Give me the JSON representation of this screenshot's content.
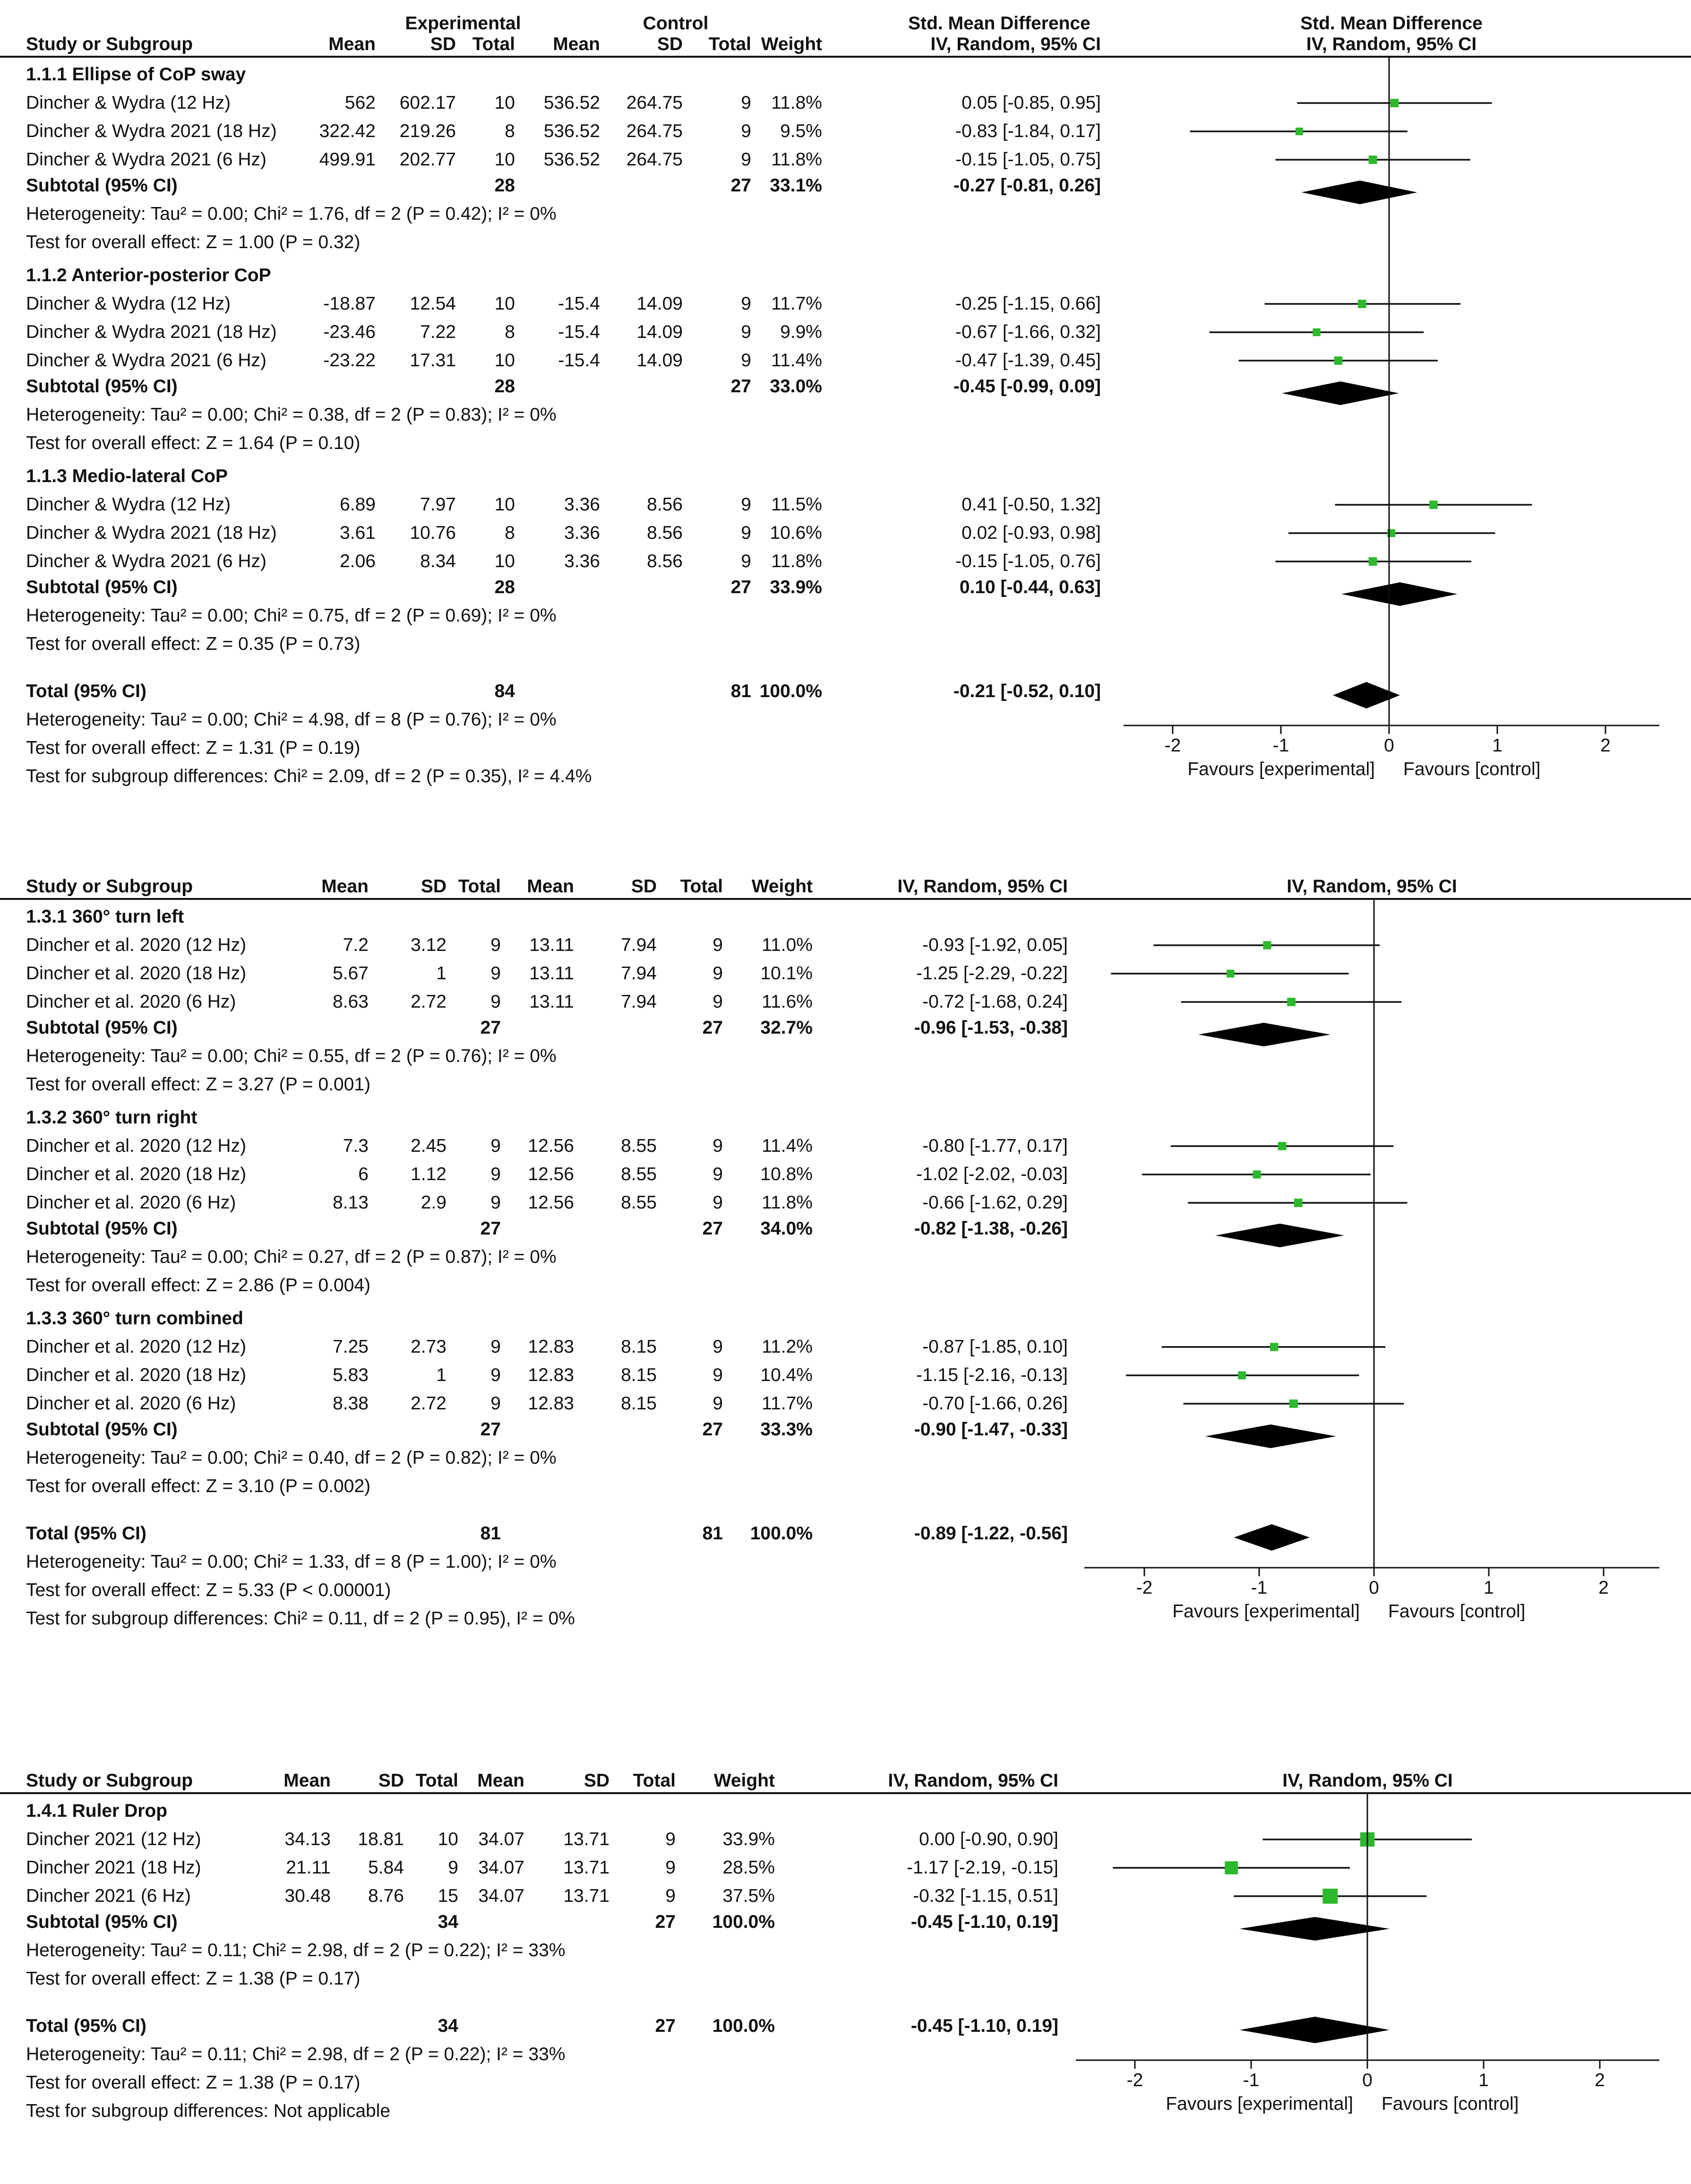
{
  "colors": {
    "marker": "#2db82d",
    "ink": "#111111",
    "diamond": "#000000"
  },
  "top_header": {
    "experimental": "Experimental",
    "control": "Control",
    "smd": "Std. Mean Difference",
    "smd_plot": "Std. Mean Difference"
  },
  "chart_data": [
    {
      "type": "forest",
      "columns": [
        "Study or Subgroup",
        "Mean",
        "SD",
        "Total",
        "Mean",
        "SD",
        "Total",
        "Weight",
        "IV, Random, 95% CI"
      ],
      "plot_header": "IV, Random, 95% CI",
      "xlim": [
        -2,
        2
      ],
      "ticks": [
        "-2",
        "-1",
        "0",
        "1",
        "2"
      ],
      "favours_left": "Favours [experimental]",
      "favours_right": "Favours [control]",
      "groups": [
        {
          "title": "1.1.1 Ellipse of CoP sway",
          "studies": [
            {
              "name": "Dincher & Wydra (12 Hz)",
              "e_mean": "562",
              "e_sd": "602.17",
              "e_total": "10",
              "c_mean": "536.52",
              "c_sd": "264.75",
              "c_total": "9",
              "weight": "11.8%",
              "ci": "0.05 [-0.85, 0.95]",
              "est": 0.05,
              "lo": -0.85,
              "hi": 0.95,
              "w": 11.8
            },
            {
              "name": "Dincher & Wydra 2021 (18 Hz)",
              "e_mean": "322.42",
              "e_sd": "219.26",
              "e_total": "8",
              "c_mean": "536.52",
              "c_sd": "264.75",
              "c_total": "9",
              "weight": "9.5%",
              "ci": "-0.83 [-1.84, 0.17]",
              "est": -0.83,
              "lo": -1.84,
              "hi": 0.17,
              "w": 9.5
            },
            {
              "name": "Dincher & Wydra 2021 (6 Hz)",
              "e_mean": "499.91",
              "e_sd": "202.77",
              "e_total": "10",
              "c_mean": "536.52",
              "c_sd": "264.75",
              "c_total": "9",
              "weight": "11.8%",
              "ci": "-0.15 [-1.05, 0.75]",
              "est": -0.15,
              "lo": -1.05,
              "hi": 0.75,
              "w": 11.8
            }
          ],
          "subtotal": {
            "label": "Subtotal (95% CI)",
            "e_total": "28",
            "c_total": "27",
            "weight": "33.1%",
            "ci": "-0.27 [-0.81, 0.26]",
            "est": -0.27,
            "lo": -0.81,
            "hi": 0.26
          },
          "heterogeneity": "Heterogeneity: Tau² = 0.00; Chi² = 1.76, df = 2 (P = 0.42); I² = 0%",
          "overall": "Test for overall effect: Z = 1.00 (P = 0.32)"
        },
        {
          "title": "1.1.2 Anterior-posterior CoP",
          "studies": [
            {
              "name": "Dincher & Wydra (12 Hz)",
              "e_mean": "-18.87",
              "e_sd": "12.54",
              "e_total": "10",
              "c_mean": "-15.4",
              "c_sd": "14.09",
              "c_total": "9",
              "weight": "11.7%",
              "ci": "-0.25 [-1.15, 0.66]",
              "est": -0.25,
              "lo": -1.15,
              "hi": 0.66,
              "w": 11.7
            },
            {
              "name": "Dincher & Wydra 2021 (18 Hz)",
              "e_mean": "-23.46",
              "e_sd": "7.22",
              "e_total": "8",
              "c_mean": "-15.4",
              "c_sd": "14.09",
              "c_total": "9",
              "weight": "9.9%",
              "ci": "-0.67 [-1.66, 0.32]",
              "est": -0.67,
              "lo": -1.66,
              "hi": 0.32,
              "w": 9.9
            },
            {
              "name": "Dincher & Wydra 2021 (6 Hz)",
              "e_mean": "-23.22",
              "e_sd": "17.31",
              "e_total": "10",
              "c_mean": "-15.4",
              "c_sd": "14.09",
              "c_total": "9",
              "weight": "11.4%",
              "ci": "-0.47 [-1.39, 0.45]",
              "est": -0.47,
              "lo": -1.39,
              "hi": 0.45,
              "w": 11.4
            }
          ],
          "subtotal": {
            "label": "Subtotal (95% CI)",
            "e_total": "28",
            "c_total": "27",
            "weight": "33.0%",
            "ci": "-0.45 [-0.99, 0.09]",
            "est": -0.45,
            "lo": -0.99,
            "hi": 0.09
          },
          "heterogeneity": "Heterogeneity: Tau² = 0.00; Chi² = 0.38, df = 2 (P = 0.83); I² = 0%",
          "overall": "Test for overall effect: Z = 1.64 (P = 0.10)"
        },
        {
          "title": "1.1.3 Medio-lateral CoP",
          "studies": [
            {
              "name": "Dincher & Wydra (12 Hz)",
              "e_mean": "6.89",
              "e_sd": "7.97",
              "e_total": "10",
              "c_mean": "3.36",
              "c_sd": "8.56",
              "c_total": "9",
              "weight": "11.5%",
              "ci": "0.41 [-0.50, 1.32]",
              "est": 0.41,
              "lo": -0.5,
              "hi": 1.32,
              "w": 11.5
            },
            {
              "name": "Dincher & Wydra 2021 (18 Hz)",
              "e_mean": "3.61",
              "e_sd": "10.76",
              "e_total": "8",
              "c_mean": "3.36",
              "c_sd": "8.56",
              "c_total": "9",
              "weight": "10.6%",
              "ci": "0.02 [-0.93, 0.98]",
              "est": 0.02,
              "lo": -0.93,
              "hi": 0.98,
              "w": 10.6
            },
            {
              "name": "Dincher & Wydra 2021 (6 Hz)",
              "e_mean": "2.06",
              "e_sd": "8.34",
              "e_total": "10",
              "c_mean": "3.36",
              "c_sd": "8.56",
              "c_total": "9",
              "weight": "11.8%",
              "ci": "-0.15 [-1.05, 0.76]",
              "est": -0.15,
              "lo": -1.05,
              "hi": 0.76,
              "w": 11.8
            }
          ],
          "subtotal": {
            "label": "Subtotal (95% CI)",
            "e_total": "28",
            "c_total": "27",
            "weight": "33.9%",
            "ci": "0.10 [-0.44, 0.63]",
            "est": 0.1,
            "lo": -0.44,
            "hi": 0.63
          },
          "heterogeneity": "Heterogeneity: Tau² = 0.00; Chi² = 0.75, df = 2 (P = 0.69); I² = 0%",
          "overall": "Test for overall effect: Z = 0.35 (P = 0.73)"
        }
      ],
      "total": {
        "label": "Total (95% CI)",
        "e_total": "84",
        "c_total": "81",
        "weight": "100.0%",
        "ci": "-0.21 [-0.52, 0.10]",
        "est": -0.21,
        "lo": -0.52,
        "hi": 0.1
      },
      "footer": [
        "Heterogeneity: Tau² = 0.00; Chi² = 4.98, df = 8 (P = 0.76); I² = 0%",
        "Test for overall effect: Z = 1.31 (P = 0.19)",
        "Test for subgroup differences: Chi² = 2.09, df = 2 (P = 0.35), I² = 4.4%"
      ]
    },
    {
      "type": "forest",
      "columns": [
        "Study or Subgroup",
        "Mean",
        "SD",
        "Total",
        "Mean",
        "SD",
        "Total",
        "Weight",
        "IV, Random, 95% CI"
      ],
      "plot_header": "IV, Random, 95% CI",
      "xlim": [
        -2,
        2
      ],
      "ticks": [
        "-2",
        "-1",
        "0",
        "1",
        "2"
      ],
      "favours_left": "Favours [experimental]",
      "favours_right": "Favours [control]",
      "groups": [
        {
          "title": "1.3.1 360° turn left",
          "studies": [
            {
              "name": "Dincher et al. 2020 (12 Hz)",
              "e_mean": "7.2",
              "e_sd": "3.12",
              "e_total": "9",
              "c_mean": "13.11",
              "c_sd": "7.94",
              "c_total": "9",
              "weight": "11.0%",
              "ci": "-0.93 [-1.92, 0.05]",
              "est": -0.93,
              "lo": -1.92,
              "hi": 0.05,
              "w": 11.0
            },
            {
              "name": "Dincher et al. 2020 (18 Hz)",
              "e_mean": "5.67",
              "e_sd": "1",
              "e_total": "9",
              "c_mean": "13.11",
              "c_sd": "7.94",
              "c_total": "9",
              "weight": "10.1%",
              "ci": "-1.25 [-2.29, -0.22]",
              "est": -1.25,
              "lo": -2.29,
              "hi": -0.22,
              "w": 10.1
            },
            {
              "name": "Dincher et al. 2020 (6 Hz)",
              "e_mean": "8.63",
              "e_sd": "2.72",
              "e_total": "9",
              "c_mean": "13.11",
              "c_sd": "7.94",
              "c_total": "9",
              "weight": "11.6%",
              "ci": "-0.72 [-1.68, 0.24]",
              "est": -0.72,
              "lo": -1.68,
              "hi": 0.24,
              "w": 11.6
            }
          ],
          "subtotal": {
            "label": "Subtotal (95% CI)",
            "e_total": "27",
            "c_total": "27",
            "weight": "32.7%",
            "ci": "-0.96 [-1.53, -0.38]",
            "est": -0.96,
            "lo": -1.53,
            "hi": -0.38
          },
          "heterogeneity": "Heterogeneity: Tau² = 0.00; Chi² = 0.55, df = 2 (P = 0.76); I² = 0%",
          "overall": "Test for overall effect: Z = 3.27 (P = 0.001)"
        },
        {
          "title": "1.3.2 360° turn right",
          "studies": [
            {
              "name": "Dincher et al. 2020 (12 Hz)",
              "e_mean": "7.3",
              "e_sd": "2.45",
              "e_total": "9",
              "c_mean": "12.56",
              "c_sd": "8.55",
              "c_total": "9",
              "weight": "11.4%",
              "ci": "-0.80 [-1.77, 0.17]",
              "est": -0.8,
              "lo": -1.77,
              "hi": 0.17,
              "w": 11.4
            },
            {
              "name": "Dincher et al. 2020 (18 Hz)",
              "e_mean": "6",
              "e_sd": "1.12",
              "e_total": "9",
              "c_mean": "12.56",
              "c_sd": "8.55",
              "c_total": "9",
              "weight": "10.8%",
              "ci": "-1.02 [-2.02, -0.03]",
              "est": -1.02,
              "lo": -2.02,
              "hi": -0.03,
              "w": 10.8
            },
            {
              "name": "Dincher et al. 2020 (6 Hz)",
              "e_mean": "8.13",
              "e_sd": "2.9",
              "e_total": "9",
              "c_mean": "12.56",
              "c_sd": "8.55",
              "c_total": "9",
              "weight": "11.8%",
              "ci": "-0.66 [-1.62, 0.29]",
              "est": -0.66,
              "lo": -1.62,
              "hi": 0.29,
              "w": 11.8
            }
          ],
          "subtotal": {
            "label": "Subtotal (95% CI)",
            "e_total": "27",
            "c_total": "27",
            "weight": "34.0%",
            "ci": "-0.82 [-1.38, -0.26]",
            "est": -0.82,
            "lo": -1.38,
            "hi": -0.26
          },
          "heterogeneity": "Heterogeneity: Tau² = 0.00; Chi² = 0.27, df = 2 (P = 0.87); I² = 0%",
          "overall": "Test for overall effect: Z = 2.86 (P = 0.004)"
        },
        {
          "title": "1.3.3 360° turn combined",
          "studies": [
            {
              "name": "Dincher et al. 2020 (12 Hz)",
              "e_mean": "7.25",
              "e_sd": "2.73",
              "e_total": "9",
              "c_mean": "12.83",
              "c_sd": "8.15",
              "c_total": "9",
              "weight": "11.2%",
              "ci": "-0.87 [-1.85, 0.10]",
              "est": -0.87,
              "lo": -1.85,
              "hi": 0.1,
              "w": 11.2
            },
            {
              "name": "Dincher et al. 2020 (18 Hz)",
              "e_mean": "5.83",
              "e_sd": "1",
              "e_total": "9",
              "c_mean": "12.83",
              "c_sd": "8.15",
              "c_total": "9",
              "weight": "10.4%",
              "ci": "-1.15 [-2.16, -0.13]",
              "est": -1.15,
              "lo": -2.16,
              "hi": -0.13,
              "w": 10.4
            },
            {
              "name": "Dincher et al. 2020 (6 Hz)",
              "e_mean": "8.38",
              "e_sd": "2.72",
              "e_total": "9",
              "c_mean": "12.83",
              "c_sd": "8.15",
              "c_total": "9",
              "weight": "11.7%",
              "ci": "-0.70 [-1.66, 0.26]",
              "est": -0.7,
              "lo": -1.66,
              "hi": 0.26,
              "w": 11.7
            }
          ],
          "subtotal": {
            "label": "Subtotal (95% CI)",
            "e_total": "27",
            "c_total": "27",
            "weight": "33.3%",
            "ci": "-0.90 [-1.47, -0.33]",
            "est": -0.9,
            "lo": -1.47,
            "hi": -0.33
          },
          "heterogeneity": "Heterogeneity: Tau² = 0.00; Chi² = 0.40, df = 2 (P = 0.82); I² = 0%",
          "overall": "Test for overall effect: Z = 3.10 (P = 0.002)"
        }
      ],
      "total": {
        "label": "Total (95% CI)",
        "e_total": "81",
        "c_total": "81",
        "weight": "100.0%",
        "ci": "-0.89 [-1.22, -0.56]",
        "est": -0.89,
        "lo": -1.22,
        "hi": -0.56
      },
      "footer": [
        "Heterogeneity: Tau² = 0.00; Chi² = 1.33, df = 8 (P = 1.00); I² = 0%",
        "Test for overall effect: Z = 5.33 (P < 0.00001)",
        "Test for subgroup differences: Chi² = 0.11, df = 2 (P = 0.95), I² = 0%"
      ]
    },
    {
      "type": "forest",
      "columns": [
        "Study or Subgroup",
        "Mean",
        "SD",
        "Total",
        "Mean",
        "SD",
        "Total",
        "Weight",
        "IV, Random, 95% CI"
      ],
      "plot_header": "IV, Random, 95% CI",
      "xlim": [
        -2,
        2
      ],
      "ticks": [
        "-2",
        "-1",
        "0",
        "1",
        "2"
      ],
      "favours_left": "Favours [experimental]",
      "favours_right": "Favours [control]",
      "groups": [
        {
          "title": "1.4.1 Ruler Drop",
          "studies": [
            {
              "name": "Dincher 2021 (12 Hz)",
              "e_mean": "34.13",
              "e_sd": "18.81",
              "e_total": "10",
              "c_mean": "34.07",
              "c_sd": "13.71",
              "c_total": "9",
              "weight": "33.9%",
              "ci": "0.00 [-0.90, 0.90]",
              "est": 0.0,
              "lo": -0.9,
              "hi": 0.9,
              "w": 33.9
            },
            {
              "name": "Dincher 2021 (18 Hz)",
              "e_mean": "21.11",
              "e_sd": "5.84",
              "e_total": "9",
              "c_mean": "34.07",
              "c_sd": "13.71",
              "c_total": "9",
              "weight": "28.5%",
              "ci": "-1.17 [-2.19, -0.15]",
              "est": -1.17,
              "lo": -2.19,
              "hi": -0.15,
              "w": 28.5
            },
            {
              "name": "Dincher 2021 (6 Hz)",
              "e_mean": "30.48",
              "e_sd": "8.76",
              "e_total": "15",
              "c_mean": "34.07",
              "c_sd": "13.71",
              "c_total": "9",
              "weight": "37.5%",
              "ci": "-0.32 [-1.15, 0.51]",
              "est": -0.32,
              "lo": -1.15,
              "hi": 0.51,
              "w": 37.5
            }
          ],
          "subtotal": {
            "label": "Subtotal (95% CI)",
            "e_total": "34",
            "c_total": "27",
            "weight": "100.0%",
            "ci": "-0.45 [-1.10, 0.19]",
            "est": -0.45,
            "lo": -1.1,
            "hi": 0.19
          },
          "heterogeneity": "Heterogeneity: Tau² = 0.11; Chi² = 2.98, df = 2 (P = 0.22); I² = 33%",
          "overall": "Test for overall effect: Z = 1.38 (P = 0.17)"
        }
      ],
      "total": {
        "label": "Total (95% CI)",
        "e_total": "34",
        "c_total": "27",
        "weight": "100.0%",
        "ci": "-0.45 [-1.10, 0.19]",
        "est": -0.45,
        "lo": -1.1,
        "hi": 0.19
      },
      "footer": [
        "Heterogeneity: Tau² = 0.11; Chi² = 2.98, df = 2 (P = 0.22); I² = 33%",
        "Test for overall effect: Z = 1.38 (P = 0.17)",
        "Test for subgroup differences: Not applicable"
      ]
    }
  ]
}
